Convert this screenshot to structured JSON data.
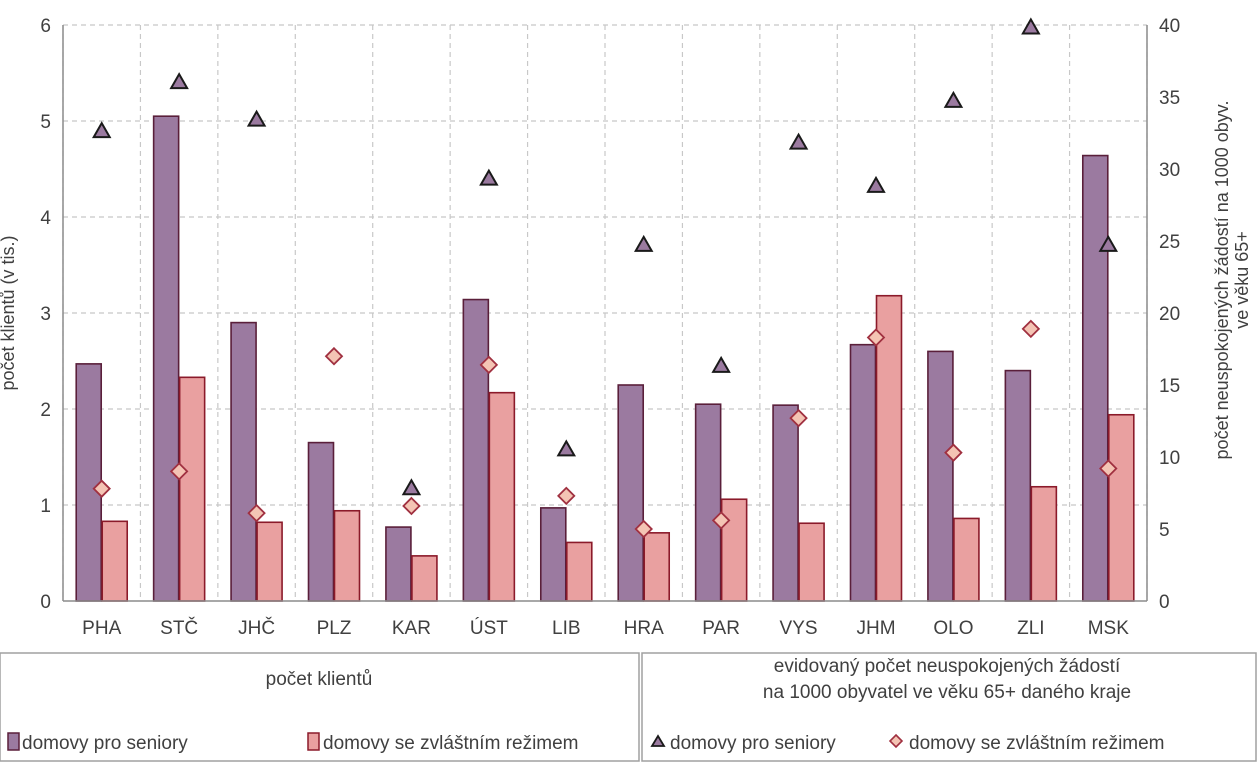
{
  "chart_data": {
    "type": "bar",
    "categories": [
      "PHA",
      "STČ",
      "JHČ",
      "PLZ",
      "KAR",
      "ÚST",
      "LIB",
      "HRA",
      "PAR",
      "VYS",
      "JHM",
      "OLO",
      "ZLI",
      "MSK"
    ],
    "bar_series": [
      {
        "name": "domovy pro seniory",
        "color": "#9b7aa0",
        "stroke": "#5a1f3a",
        "values": [
          2.47,
          5.05,
          2.9,
          1.65,
          0.77,
          3.14,
          0.97,
          2.25,
          2.05,
          2.04,
          2.67,
          2.6,
          2.4,
          4.64
        ]
      },
      {
        "name": "domovy se zvláštním režimem",
        "color": "#e9a0a0",
        "stroke": "#8b1a2a",
        "values": [
          0.83,
          2.33,
          0.82,
          0.94,
          0.47,
          2.17,
          0.61,
          0.71,
          1.06,
          0.81,
          3.18,
          0.86,
          1.19,
          1.94
        ]
      }
    ],
    "marker_series": [
      {
        "name": "domovy pro seniory",
        "marker": "triangle",
        "color": "#9b7aa0",
        "stroke": "#1a1a1a",
        "values": [
          32.7,
          36.1,
          33.5,
          null,
          7.9,
          29.4,
          10.6,
          24.8,
          16.4,
          31.9,
          28.9,
          34.8,
          39.9,
          24.8
        ]
      },
      {
        "name": "domovy se zvláštním režimem",
        "marker": "diamond",
        "color": "#f4c4b4",
        "stroke": "#a03040",
        "values": [
          7.8,
          9.0,
          6.1,
          17.0,
          6.6,
          16.4,
          7.3,
          5.0,
          5.6,
          12.7,
          18.3,
          10.3,
          18.9,
          9.2
        ]
      }
    ],
    "y_left": {
      "label": "počet klientů (v tis.)",
      "min": 0,
      "max": 6,
      "ticks": [
        0,
        1,
        2,
        3,
        4,
        5,
        6
      ]
    },
    "y_right": {
      "label_line1": "počet neuspokojených žádostí na 1000 obyv.",
      "label_line2": "ve věku 65+",
      "min": 0,
      "max": 40,
      "ticks": [
        0,
        5,
        10,
        15,
        20,
        25,
        30,
        35,
        40
      ]
    },
    "grid": true
  },
  "legend": {
    "left_header": "počet klientů",
    "right_header_line1": "evidovaný počet neuspokojených žádostí",
    "right_header_line2": "na 1000 obyvatel ve věku 65+ daného kraje",
    "left_items": [
      "domovy pro seniory",
      "domovy se zvláštním režimem"
    ],
    "right_items": [
      "domovy pro seniory",
      "domovy se zvláštním režimem"
    ]
  }
}
